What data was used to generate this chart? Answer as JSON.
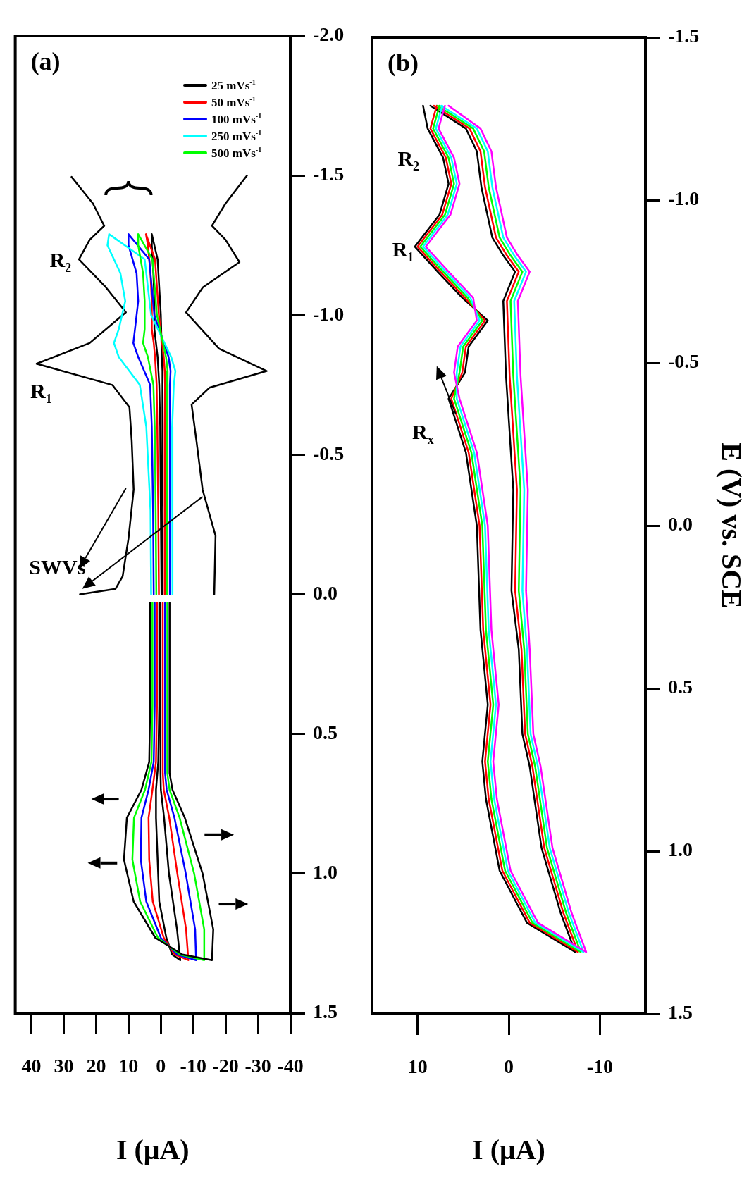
{
  "chart_data": [
    {
      "type": "line",
      "xlabel": "I (μA)",
      "xlim": [
        45,
        -40
      ],
      "ylim": [
        1.5,
        -2.0
      ],
      "yticks": [
        {
          "value": -2.0,
          "label": "-2.0"
        },
        {
          "value": -1.5,
          "label": "-1.5"
        },
        {
          "value": -1.0,
          "label": "-1.0"
        },
        {
          "value": -0.5,
          "label": "-0.5"
        },
        {
          "value": 0,
          "label": "0.0"
        },
        {
          "value": 0.5,
          "label": "0.5"
        },
        {
          "value": 1.0,
          "label": "1.0"
        },
        {
          "value": 1.5,
          "label": "1.5"
        }
      ],
      "xticks": [
        40,
        30,
        20,
        10,
        0,
        -10,
        -20,
        -30,
        -40
      ],
      "grid": false,
      "legend": "top right",
      "marker": "none",
      "line_style": "solid",
      "annotations": [
        "(a)",
        "R$_{1}$",
        "R$_{2}$",
        "SWVs"
      ],
      "series": [
        {
          "color": "#000000",
          "x": [
            0.5,
            0.5,
            0.8,
            1.5,
            1.5,
            1,
            0.5,
            -1.7,
            -3.5,
            -6,
            -5,
            -2.5,
            -1,
            0,
            0.1,
            0.1
          ],
          "values": [
            0.03,
            0.4,
            0.6,
            0.7,
            0.8,
            0.95,
            1.1,
            1.23,
            1.29,
            1.31,
            1.2,
            1.0,
            0.8,
            0.7,
            0.64,
            0.03
          ]
        },
        {
          "color": "#ff0000",
          "x": [
            1.2,
            1.2,
            1.5,
            2.6,
            3.8,
            3.6,
            2.5,
            -0.9,
            -4.3,
            -8.5,
            -7.8,
            -5.1,
            -2.6,
            -0.9,
            -0.6,
            -0.6
          ],
          "values": [
            0.03,
            0.4,
            0.6,
            0.7,
            0.8,
            0.95,
            1.1,
            1.23,
            1.29,
            1.31,
            1.2,
            1.0,
            0.8,
            0.7,
            0.64,
            0.03
          ]
        },
        {
          "color": "#0000ff",
          "x": [
            1.9,
            1.9,
            2.2,
            3.8,
            6,
            6.2,
            4.5,
            0,
            -5.1,
            -10.9,
            -10.6,
            -7.7,
            -4.2,
            -1.8,
            -1.3,
            -1.3
          ],
          "values": [
            0.03,
            0.4,
            0.6,
            0.7,
            0.8,
            0.95,
            1.1,
            1.23,
            1.29,
            1.31,
            1.2,
            1.0,
            0.8,
            0.7,
            0.64,
            0.03
          ]
        },
        {
          "color": "#00ff00",
          "x": [
            2.6,
            2.6,
            2.9,
            4.9,
            8.3,
            8.8,
            6.4,
            0.9,
            -5.9,
            -13.4,
            -13.4,
            -10.3,
            -5.8,
            -2.7,
            -2,
            -2
          ],
          "values": [
            0.03,
            0.4,
            0.6,
            0.7,
            0.8,
            0.95,
            1.1,
            1.23,
            1.29,
            1.31,
            1.2,
            1.0,
            0.8,
            0.7,
            0.64,
            0.03
          ]
        },
        {
          "color": "#000000",
          "x": [
            3.3,
            3.3,
            3.6,
            6,
            10.5,
            11.4,
            8.4,
            1.7,
            -6.7,
            -15.8,
            -16.2,
            -12.9,
            -7.4,
            -3.6,
            -2.7,
            -2.7
          ],
          "values": [
            0.03,
            0.4,
            0.6,
            0.7,
            0.8,
            0.95,
            1.1,
            1.23,
            1.29,
            1.31,
            1.2,
            1.0,
            0.8,
            0.7,
            0.64,
            0.03
          ]
        },
        {
          "color": "#000000",
          "x": [
            25,
            14,
            11.8,
            10,
            8.4,
            9,
            9.7,
            15,
            38.4,
            22,
            10.8,
            17,
            25.3,
            22,
            17.5,
            21,
            27.6
          ],
          "values": [
            0,
            -0.02,
            -0.065,
            -0.2,
            -0.375,
            -0.55,
            -0.67,
            -0.75,
            -0.826,
            -0.9,
            -1.01,
            -1.1,
            -1.2,
            -1.27,
            -1.32,
            -1.4,
            -1.495
          ]
        },
        {
          "color": "#000000",
          "x": [
            -16.5,
            -16.9,
            -12.9,
            -11,
            -9.5,
            -15,
            -32.7,
            -18,
            -7.8,
            -13,
            -24.3,
            -20,
            -15.8,
            -20,
            -26.6
          ],
          "values": [
            0,
            -0.21,
            -0.375,
            -0.55,
            -0.68,
            -0.74,
            -0.8,
            -0.88,
            -1.01,
            -1.1,
            -1.19,
            -1.27,
            -1.32,
            -1.4,
            -1.5
          ]
        },
        {
          "name": "25 mVs$^{-1}$",
          "color": "#000000",
          "x": [
            -0.2,
            0,
            0.2,
            0.5,
            1,
            1.5,
            2,
            2,
            2.3,
            2.8,
            2.8,
            1,
            0,
            -0.3,
            -0.5,
            -0.5,
            -0.3,
            -0.4
          ],
          "values": [
            0,
            -0.3,
            -0.6,
            -0.75,
            -0.85,
            -0.9,
            -0.95,
            -1.05,
            -1.15,
            -1.25,
            -1.29,
            -1.2,
            -1.0,
            -0.85,
            -0.8,
            -0.6,
            -0.3,
            0
          ]
        },
        {
          "name": "50 mVs$^{-1}$",
          "color": "#ff0000",
          "x": [
            0.6,
            0.8,
            1.1,
            1.3,
            1.8,
            2.2,
            2.8,
            2.8,
            3.2,
            4,
            4.6,
            1.8,
            0.6,
            -0.9,
            -1.2,
            -1.3,
            -1.2,
            -1.2
          ],
          "values": [
            0,
            -0.3,
            -0.6,
            -0.75,
            -0.85,
            -0.9,
            -0.95,
            -1.05,
            -1.15,
            -1.25,
            -1.29,
            -1.2,
            -1.0,
            -0.85,
            -0.8,
            -0.75,
            -0.6,
            0
          ]
        },
        {
          "name": "100 mVs$^{-1}$",
          "color": "#0000ff",
          "x": [
            2.2,
            2.4,
            2.8,
            3.3,
            7,
            8.5,
            8,
            7,
            7.5,
            10,
            10,
            3.6,
            2,
            -2.4,
            -3,
            -2.8,
            -2.8
          ],
          "values": [
            0,
            -0.3,
            -0.6,
            -0.75,
            -0.85,
            -0.9,
            -0.95,
            -1.05,
            -1.15,
            -1.25,
            -1.29,
            -1.2,
            -1.0,
            -0.85,
            -0.8,
            -0.75,
            0
          ]
        },
        {
          "name": "250 mVs$^{-1}$",
          "color": "#00ffff",
          "x": [
            3,
            3.2,
            4.5,
            6.5,
            13,
            14.5,
            13,
            11,
            12.5,
            16.5,
            16,
            5,
            3,
            -3.2,
            -4.5,
            -4,
            -3.5,
            -3.6
          ],
          "values": [
            0,
            -0.3,
            -0.6,
            -0.75,
            -0.85,
            -0.9,
            -0.95,
            -1.05,
            -1.15,
            -1.25,
            -1.29,
            -1.2,
            -1.0,
            -0.85,
            -0.8,
            -0.75,
            -0.6,
            0
          ]
        },
        {
          "name": "500 mVs$^{-1}$",
          "color": "#00ff00",
          "x": [
            1.4,
            1.6,
            1.9,
            2.3,
            4,
            5.5,
            5,
            5,
            5.5,
            7,
            7,
            2.6,
            1.2,
            -1.6,
            -2.1,
            -2,
            -1.9,
            -1.9,
            -2
          ],
          "values": [
            0,
            -0.3,
            -0.6,
            -0.75,
            -0.85,
            -0.9,
            -0.95,
            -1.05,
            -1.15,
            -1.25,
            -1.29,
            -1.2,
            -1.0,
            -0.85,
            -0.8,
            -0.75,
            -0.6,
            -0.3,
            0
          ]
        }
      ]
    },
    {
      "type": "line",
      "xlabel": "I (μA)",
      "ylabel": "E (V) vs. SCE",
      "xlim": [
        15,
        -15
      ],
      "ylim": [
        1.5,
        -1.5
      ],
      "yticks": [
        {
          "value": -1.5,
          "label": "-1.5"
        },
        {
          "value": -1.0,
          "label": "-1.0"
        },
        {
          "value": -0.5,
          "label": "-0.5"
        },
        {
          "value": 0,
          "label": "0.0"
        },
        {
          "value": 0.5,
          "label": "0.5"
        },
        {
          "value": 1.0,
          "label": "1.0"
        },
        {
          "value": 1.5,
          "label": "1.5"
        }
      ],
      "xticks": [
        10,
        0,
        -10
      ],
      "grid": false,
      "marker": "none",
      "line_style": "solid",
      "annotations": [
        "(b)",
        "R$_{1}$",
        "R$_{2}$",
        "R$_{x}$"
      ],
      "series": [
        {
          "color": "#000000",
          "x": [
            9.4,
            8.9,
            7.2,
            6.6,
            7.6,
            10.3,
            7.8,
            5.1,
            2.3,
            4.4,
            4.8,
            6.6,
            4.7,
            3.5,
            3.1,
            2.3,
            2.9,
            2.5,
            1.0,
            -2.0,
            -7.3,
            -5.7,
            -3.6,
            -2.3,
            -1.5,
            -1.1,
            -0.3,
            -0.5,
            0.3,
            0.6,
            -0.7,
            0.6,
            1.8,
            3.0,
            3.5,
            4.7,
            8.6
          ],
          "values": [
            -1.29,
            -1.22,
            -1.13,
            -1.05,
            -0.955,
            -0.857,
            -0.78,
            -0.7,
            -0.63,
            -0.55,
            -0.47,
            -0.39,
            -0.225,
            0,
            0.32,
            0.55,
            0.725,
            0.84,
            1.06,
            1.22,
            1.31,
            1.19,
            0.99,
            0.74,
            0.64,
            0.38,
            0.2,
            -0.11,
            -0.46,
            -0.69,
            -0.78,
            -0.83,
            -0.885,
            -1.04,
            -1.15,
            -1.22,
            -1.29
          ]
        },
        {
          "color": "#ff0000",
          "x": [
            7.9,
            8.6,
            6.9,
            6.3,
            7.3,
            10.0,
            7.5,
            4.8,
            2.6,
            4.7,
            5.1,
            6.3,
            4.4,
            3.2,
            2.8,
            2.0,
            2.6,
            2.2,
            0.7,
            -2.3,
            -7.6,
            -6.0,
            -3.9,
            -2.6,
            -1.8,
            -1.4,
            -0.7,
            -0.9,
            -0.1,
            0.2,
            -1.1,
            0.2,
            1.4,
            2.6,
            3.1,
            4.3,
            8.2
          ],
          "values": [
            -1.29,
            -1.22,
            -1.13,
            -1.05,
            -0.955,
            -0.857,
            -0.78,
            -0.7,
            -0.63,
            -0.55,
            -0.47,
            -0.39,
            -0.225,
            0,
            0.32,
            0.55,
            0.725,
            0.84,
            1.06,
            1.22,
            1.31,
            1.19,
            0.99,
            0.74,
            0.64,
            0.38,
            0.2,
            -0.11,
            -0.46,
            -0.69,
            -0.78,
            -0.83,
            -0.885,
            -1.04,
            -1.15,
            -1.22,
            -1.29
          ]
        },
        {
          "color": "#00ff00",
          "x": [
            7.6,
            8.3,
            6.6,
            6.0,
            7.0,
            9.7,
            7.2,
            4.5,
            2.9,
            5.0,
            5.4,
            6.0,
            4.1,
            2.9,
            2.5,
            1.7,
            2.3,
            1.9,
            0.4,
            -2.6,
            -7.9,
            -6.3,
            -4.2,
            -2.9,
            -2.1,
            -1.7,
            -1.1,
            -1.3,
            -0.5,
            -0.2,
            -1.5,
            -0.2,
            1.0,
            2.2,
            2.7,
            3.9,
            7.8
          ],
          "values": [
            -1.29,
            -1.22,
            -1.13,
            -1.05,
            -0.955,
            -0.857,
            -0.78,
            -0.7,
            -0.63,
            -0.55,
            -0.47,
            -0.39,
            -0.225,
            0,
            0.32,
            0.55,
            0.725,
            0.84,
            1.06,
            1.22,
            1.31,
            1.19,
            0.99,
            0.74,
            0.64,
            0.38,
            0.2,
            -0.11,
            -0.46,
            -0.69,
            -0.78,
            -0.83,
            -0.885,
            -1.04,
            -1.15,
            -1.22,
            -1.29
          ]
        },
        {
          "color": "#00ffff",
          "x": [
            7.3,
            8.0,
            6.3,
            5.7,
            6.7,
            9.4,
            6.9,
            4.2,
            3.2,
            5.3,
            5.7,
            5.7,
            3.8,
            2.6,
            2.2,
            1.4,
            2.0,
            1.6,
            0.1,
            -2.9,
            -8.2,
            -6.6,
            -4.5,
            -3.2,
            -2.4,
            -2.0,
            -1.5,
            -1.7,
            -0.9,
            -0.6,
            -1.9,
            -0.6,
            0.6,
            1.8,
            2.3,
            3.5,
            7.4
          ],
          "values": [
            -1.29,
            -1.22,
            -1.13,
            -1.05,
            -0.955,
            -0.857,
            -0.78,
            -0.7,
            -0.63,
            -0.55,
            -0.47,
            -0.39,
            -0.225,
            0,
            0.32,
            0.55,
            0.725,
            0.84,
            1.06,
            1.22,
            1.31,
            1.19,
            0.99,
            0.74,
            0.64,
            0.38,
            0.2,
            -0.11,
            -0.46,
            -0.69,
            -0.78,
            -0.83,
            -0.885,
            -1.04,
            -1.15,
            -1.22,
            -1.29
          ]
        },
        {
          "color": "#ff00ff",
          "x": [
            7.0,
            7.7,
            6.0,
            5.4,
            6.4,
            9.1,
            6.6,
            3.9,
            3.5,
            5.6,
            6.0,
            5.4,
            3.5,
            2.3,
            1.9,
            1.1,
            1.7,
            1.3,
            -0.2,
            -3.2,
            -8.5,
            -6.9,
            -4.8,
            -3.5,
            -2.7,
            -2.3,
            -1.9,
            -2.1,
            -1.3,
            -1.0,
            -2.3,
            -1.0,
            0.2,
            1.4,
            1.9,
            3.1,
            6.6
          ],
          "values": [
            -1.29,
            -1.22,
            -1.13,
            -1.05,
            -0.955,
            -0.857,
            -0.78,
            -0.7,
            -0.63,
            -0.55,
            -0.47,
            -0.39,
            -0.225,
            0,
            0.32,
            0.55,
            0.725,
            0.84,
            1.06,
            1.22,
            1.31,
            1.19,
            0.99,
            0.74,
            0.64,
            0.38,
            0.2,
            -0.11,
            -0.46,
            -0.69,
            -0.78,
            -0.83,
            -0.885,
            -1.04,
            -1.15,
            -1.22,
            -1.29
          ]
        }
      ]
    }
  ]
}
